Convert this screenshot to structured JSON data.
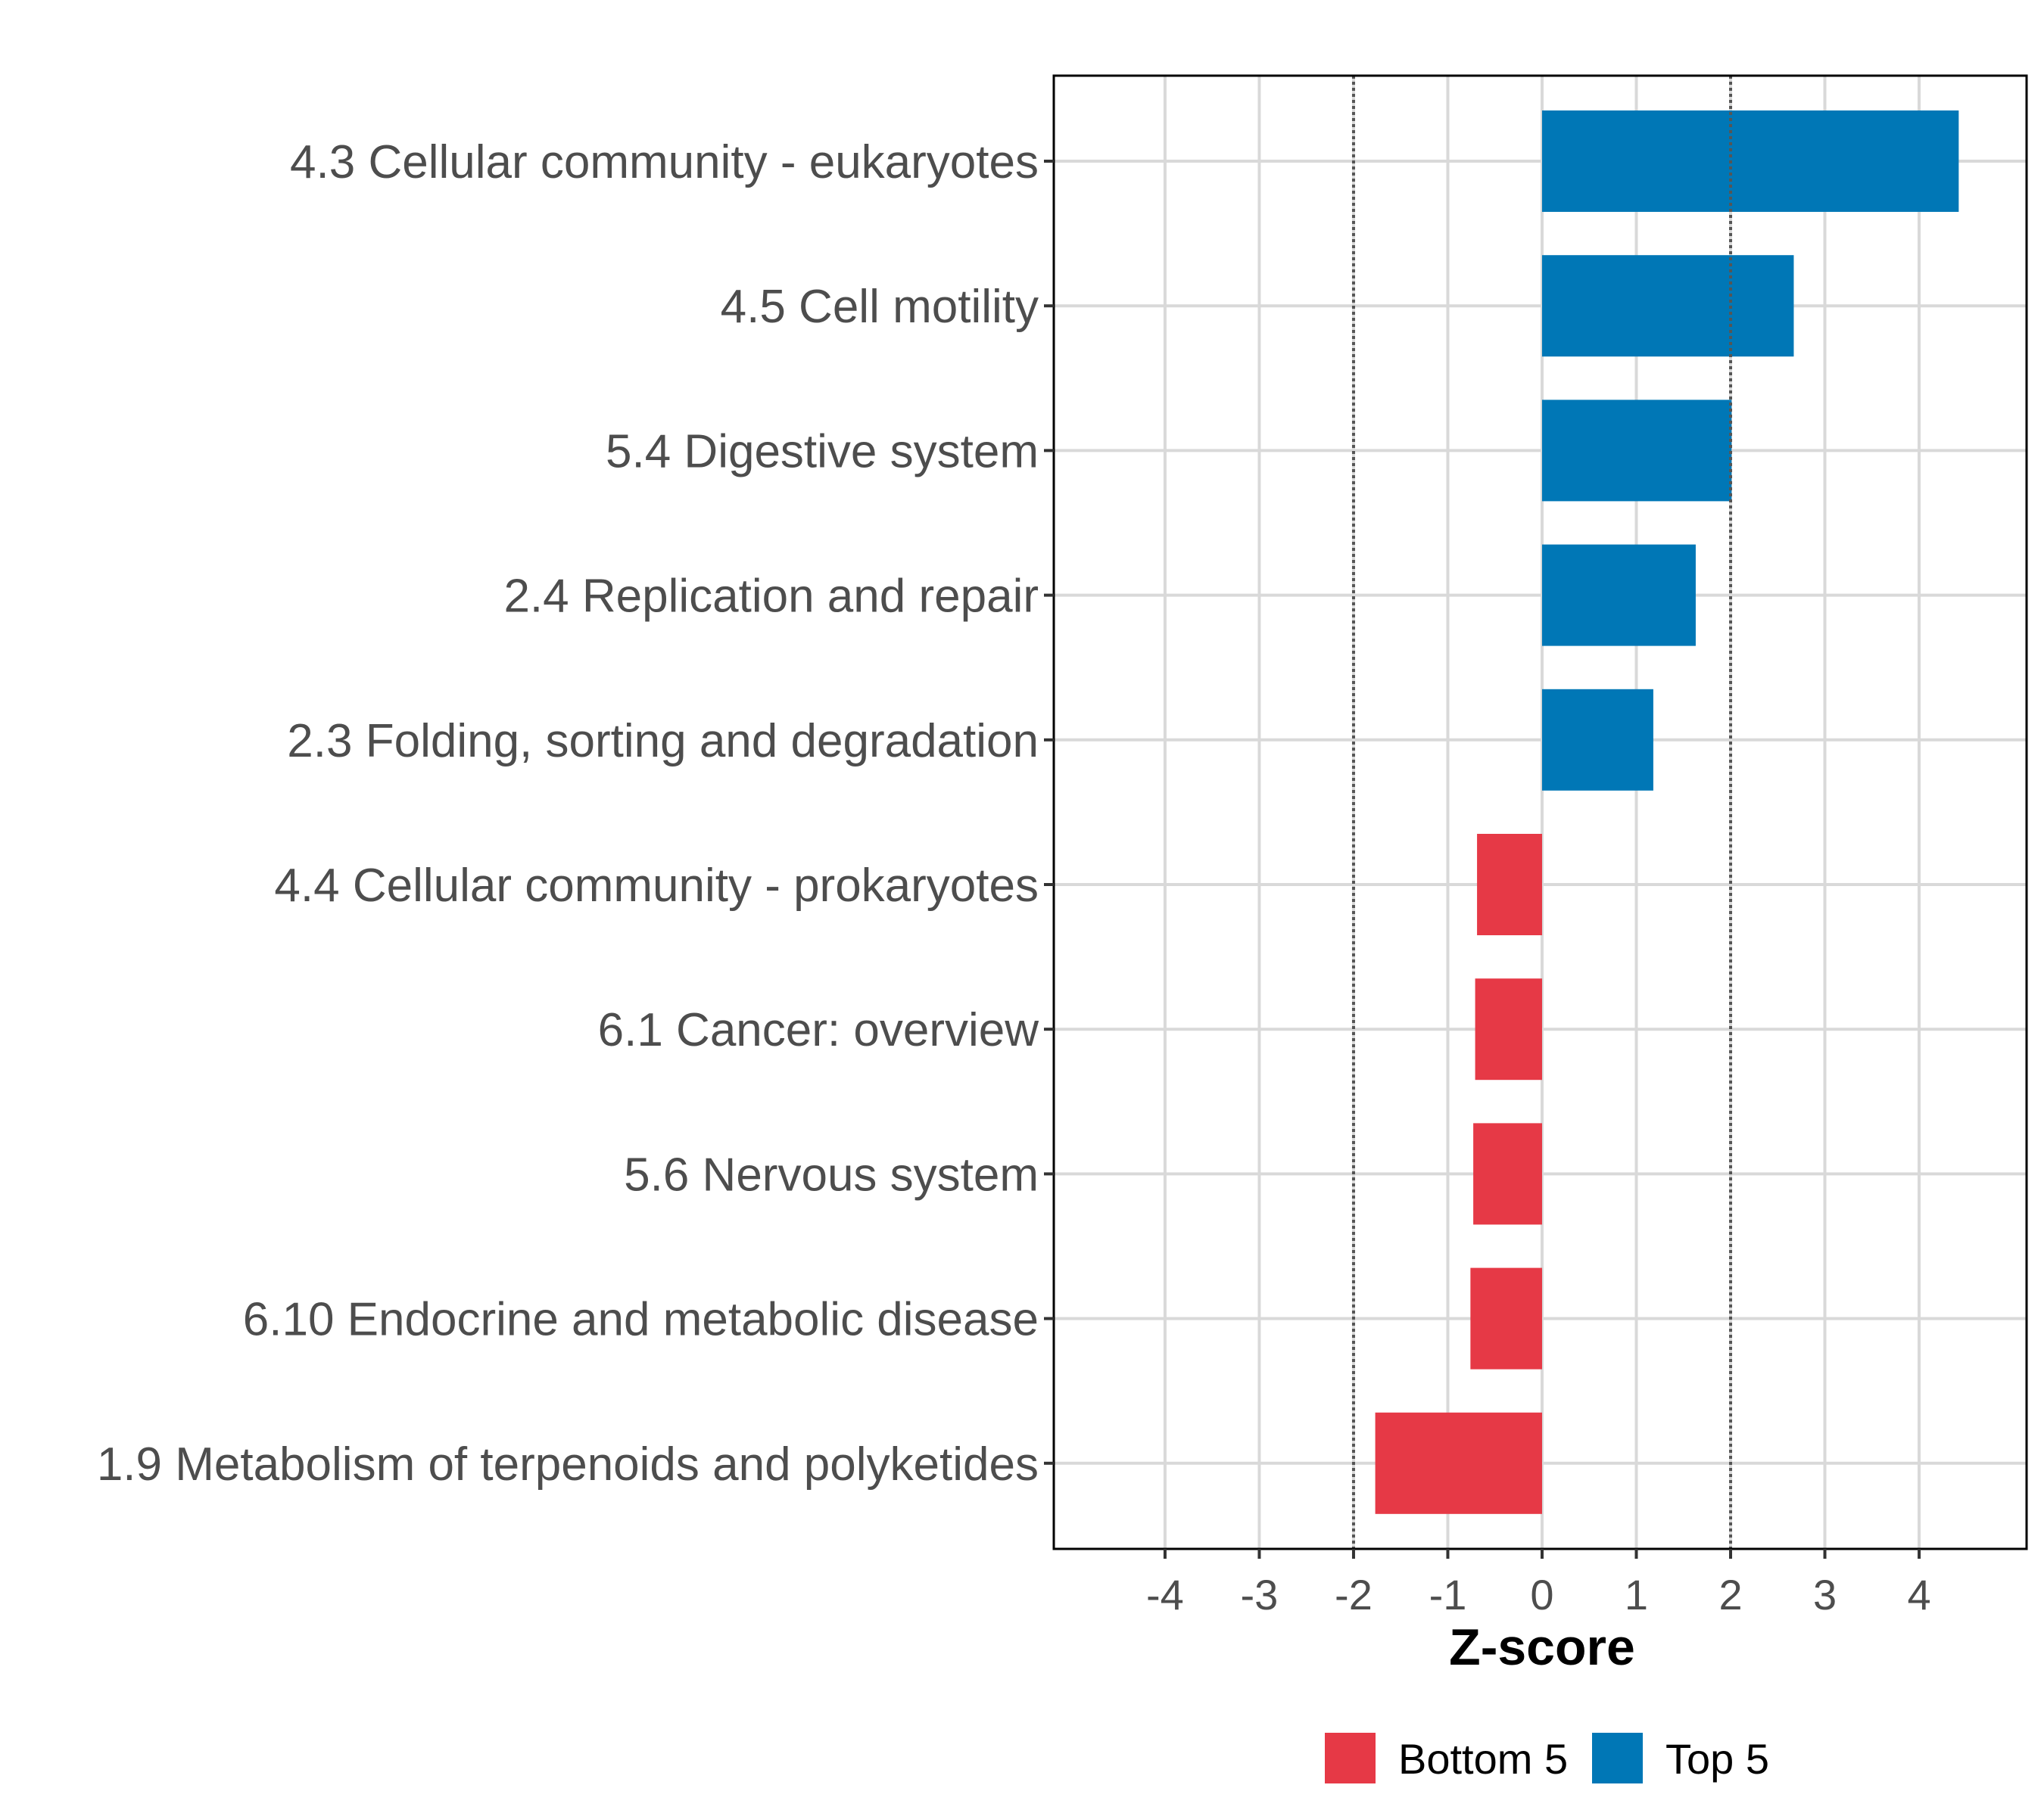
{
  "chart_data": {
    "type": "bar",
    "orientation": "horizontal",
    "title": "",
    "xlabel": "Z-score",
    "ylabel": "",
    "xlim": [
      -5.18,
      5.14
    ],
    "xticks": [
      -4,
      -3,
      -2,
      -1,
      0,
      1,
      2,
      3,
      4
    ],
    "xtick_labels": [
      "-4",
      "-3",
      "-2",
      "-1",
      "0",
      "1",
      "2",
      "3",
      "4"
    ],
    "grid": true,
    "reference_lines": [
      {
        "x": -2,
        "style": "dotted"
      },
      {
        "x": 2,
        "style": "dotted"
      }
    ],
    "categories": [
      "4.3 Cellular community - eukaryotes",
      "4.5 Cell motility",
      "5.4 Digestive system",
      "2.4 Replication and repair",
      "2.3 Folding, sorting and degradation",
      "4.4 Cellular community - prokaryotes",
      "6.1 Cancer: overview",
      "5.6 Nervous system",
      "6.10 Endocrine and metabolic disease",
      "1.9 Metabolism of terpenoids and polyketides"
    ],
    "values": [
      4.42,
      2.67,
      2.01,
      1.63,
      1.18,
      -0.69,
      -0.71,
      -0.73,
      -0.76,
      -1.77
    ],
    "groups": [
      "Top 5",
      "Top 5",
      "Top 5",
      "Top 5",
      "Top 5",
      "Bottom 5",
      "Bottom 5",
      "Bottom 5",
      "Bottom 5",
      "Bottom 5"
    ],
    "legend": {
      "position": "bottom",
      "entries": [
        {
          "label": "Bottom 5",
          "color": "#E63946"
        },
        {
          "label": "Top 5",
          "color": "#0077B6"
        }
      ]
    },
    "colors": {
      "Top 5": "#0077B6",
      "Bottom 5": "#E63946",
      "grid": "#d9d9d9",
      "reference_line": "#555555",
      "panel_border": "#000000",
      "axis_text": "#4d4d4d"
    }
  }
}
